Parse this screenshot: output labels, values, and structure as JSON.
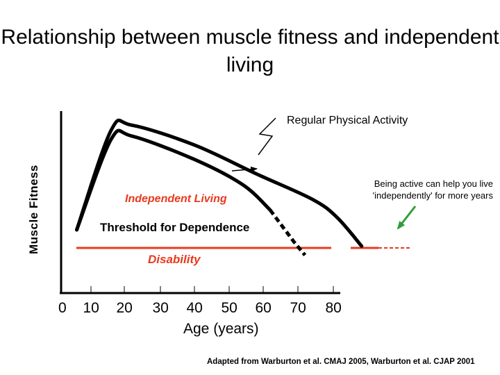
{
  "chart_data": {
    "type": "line",
    "title": "Relationship between muscle fitness and independent living",
    "xlabel": "Age (years)",
    "ylabel": "Muscle Fitness",
    "x_ticks": [
      {
        "value": 0,
        "label": "0"
      },
      {
        "value": 10,
        "label": "10"
      },
      {
        "value": 20,
        "label": "20"
      },
      {
        "value": 30,
        "label": "30"
      },
      {
        "value": 40,
        "label": "40"
      },
      {
        "value": 50,
        "label": "50"
      },
      {
        "value": 60,
        "label": "60"
      },
      {
        "value": 70,
        "label": "70"
      },
      {
        "value": 80,
        "label": "80"
      }
    ],
    "xlim": [
      0,
      80
    ],
    "series": [
      {
        "style": "solid",
        "color": "#000000",
        "points": [
          [
            5,
            4.0
          ],
          [
            16,
            9.5
          ],
          [
            22,
            9.8
          ],
          [
            40,
            8.7
          ],
          [
            58,
            7.1
          ],
          [
            74,
            5.7
          ],
          [
            81,
            4.7
          ],
          [
            88,
            3.1
          ]
        ]
      },
      {
        "style": "solid-then-dashed",
        "color": "#000000",
        "points": [
          [
            5,
            4.0
          ],
          [
            16,
            9.0
          ],
          [
            22,
            9.2
          ],
          [
            40,
            7.9
          ],
          [
            54,
            6.5
          ],
          [
            62,
            5.1
          ],
          [
            69,
            3.3
          ],
          [
            72,
            2.6
          ]
        ]
      }
    ],
    "threshold": {
      "label": "Threshold for Dependence",
      "value": 3.0,
      "color": "#e8391d"
    },
    "annotations": {
      "regular_activity": "Regular Physical Activity",
      "being_active": "Being active can help you live 'independently' for more years",
      "independent_living": "Independent Living",
      "disability": "Disability"
    },
    "grid": false,
    "legend": "none"
  },
  "source": "Adapted from Warburton et al. CMAJ 2005, Warburton et al. CJAP 2001"
}
